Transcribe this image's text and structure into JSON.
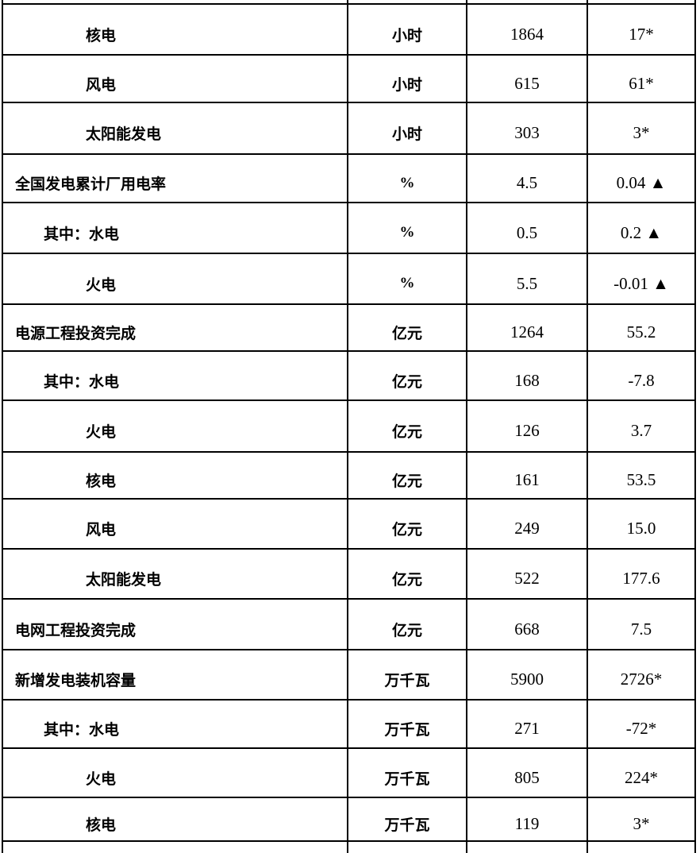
{
  "document": {
    "kind": "statistics-table-fragment",
    "language": "zh-CN"
  },
  "colors": {
    "background": "#ffffff",
    "border": "#000000",
    "text": "#000000"
  },
  "table": {
    "rows": [
      {
        "label": "核电",
        "level": 2,
        "unit": "小时",
        "value": "1864",
        "change": "17*"
      },
      {
        "label": "风电",
        "level": 2,
        "unit": "小时",
        "value": "615",
        "change": "61*"
      },
      {
        "label": "太阳能发电",
        "level": 2,
        "unit": "小时",
        "value": "303",
        "change": "3*"
      },
      {
        "label": "全国发电累计厂用电率",
        "level": 0,
        "unit": "%",
        "value": "4.5",
        "change": "0.04 ▲"
      },
      {
        "label": "其中：水电",
        "level": 1,
        "unit": "%",
        "value": "0.5",
        "change": "0.2 ▲"
      },
      {
        "label": "火电",
        "level": 2,
        "unit": "%",
        "value": "5.5",
        "change": "-0.01 ▲"
      },
      {
        "label": "电源工程投资完成",
        "level": 0,
        "unit": "亿元",
        "value": "1264",
        "change": "55.2"
      },
      {
        "label": "其中：水电",
        "level": 1,
        "unit": "亿元",
        "value": "168",
        "change": "-7.8"
      },
      {
        "label": "火电",
        "level": 2,
        "unit": "亿元",
        "value": "126",
        "change": "3.7"
      },
      {
        "label": "核电",
        "level": 2,
        "unit": "亿元",
        "value": "161",
        "change": "53.5"
      },
      {
        "label": "风电",
        "level": 2,
        "unit": "亿元",
        "value": "249",
        "change": "15.0"
      },
      {
        "label": "太阳能发电",
        "level": 2,
        "unit": "亿元",
        "value": "522",
        "change": "177.6"
      },
      {
        "label": "电网工程投资完成",
        "level": 0,
        "unit": "亿元",
        "value": "668",
        "change": "7.5"
      },
      {
        "label": "新增发电装机容量",
        "level": 0,
        "unit": "万千瓦",
        "value": "5900",
        "change": "2726*"
      },
      {
        "label": "其中：水电",
        "level": 1,
        "unit": "万千瓦",
        "value": "271",
        "change": "-72*"
      },
      {
        "label": "火电",
        "level": 2,
        "unit": "万千瓦",
        "value": "805",
        "change": "224*"
      },
      {
        "label": "核电",
        "level": 2,
        "unit": "万千瓦",
        "value": "119",
        "change": "3*"
      }
    ]
  }
}
